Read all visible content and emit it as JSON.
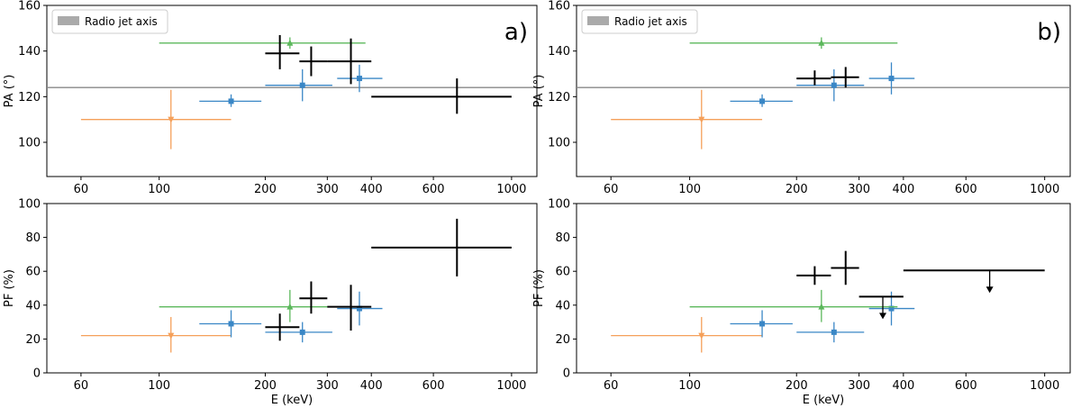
{
  "figure": {
    "ylabel_pa": "PA (°)",
    "ylabel_pf": "PF (%)",
    "xlabel": "E (keV)"
  },
  "legend": {
    "label": "Radio jet axis"
  },
  "colors": {
    "orange": "#f5a05a",
    "green": "#5cb85c",
    "blue": "#3a87c6",
    "black": "#000000",
    "axis": "#888888"
  },
  "chart_data": [
    {
      "id": "a-pa",
      "panel": "a)",
      "type": "scatter",
      "xscale": "log",
      "xlim": [
        48,
        1180
      ],
      "ylim": [
        85,
        160
      ],
      "xticks": [
        60,
        100,
        200,
        300,
        400,
        600,
        1000
      ],
      "yticks": [
        100,
        120,
        140,
        160
      ],
      "ylabel": "PA (°)",
      "hline": 124,
      "legend": "Radio jet axis",
      "series": [
        {
          "name": "orange",
          "color": "orange",
          "marker": "v",
          "points": [
            {
              "x": 108,
              "xl": 60,
              "xh": 160,
              "y": 110,
              "yl": 97,
              "yh": 123
            }
          ]
        },
        {
          "name": "blue",
          "color": "blue",
          "marker": "s",
          "points": [
            {
              "x": 160,
              "xl": 130,
              "xh": 195,
              "y": 118,
              "yl": 115.5,
              "yh": 121
            },
            {
              "x": 255,
              "xl": 200,
              "xh": 310,
              "y": 125,
              "yl": 118,
              "yh": 132
            },
            {
              "x": 370,
              "xl": 320,
              "xh": 430,
              "y": 128,
              "yl": 122,
              "yh": 134
            }
          ]
        },
        {
          "name": "green",
          "color": "green",
          "marker": "^",
          "points": [
            {
              "x": 235,
              "xl": 100,
              "xh": 385,
              "y": 143.5,
              "yl": 141,
              "yh": 146
            }
          ]
        },
        {
          "name": "black",
          "color": "black",
          "marker": "none",
          "points": [
            {
              "x": 220,
              "xl": 200,
              "xh": 250,
              "y": 139,
              "yl": 132,
              "yh": 147
            },
            {
              "x": 270,
              "xl": 250,
              "xh": 300,
              "y": 135.5,
              "yl": 129,
              "yh": 142
            },
            {
              "x": 350,
              "xl": 300,
              "xh": 400,
              "y": 135.5,
              "yl": 125.5,
              "yh": 145.5
            },
            {
              "x": 700,
              "xl": 400,
              "xh": 1000,
              "y": 120,
              "yl": 112.5,
              "yh": 128
            }
          ]
        }
      ]
    },
    {
      "id": "a-pf",
      "type": "scatter",
      "xscale": "log",
      "xlim": [
        48,
        1180
      ],
      "ylim": [
        0,
        100
      ],
      "xticks": [
        60,
        100,
        200,
        300,
        400,
        600,
        1000
      ],
      "yticks": [
        0,
        20,
        40,
        60,
        80,
        100
      ],
      "ylabel": "PF (%)",
      "xlabel": "E (keV)",
      "series": [
        {
          "name": "orange",
          "color": "orange",
          "marker": "v",
          "points": [
            {
              "x": 108,
              "xl": 60,
              "xh": 160,
              "y": 22,
              "yl": 12,
              "yh": 33
            }
          ]
        },
        {
          "name": "blue",
          "color": "blue",
          "marker": "s",
          "points": [
            {
              "x": 160,
              "xl": 130,
              "xh": 195,
              "y": 29,
              "yl": 21,
              "yh": 37
            },
            {
              "x": 255,
              "xl": 200,
              "xh": 310,
              "y": 24,
              "yl": 18,
              "yh": 30
            },
            {
              "x": 370,
              "xl": 320,
              "xh": 430,
              "y": 38,
              "yl": 28,
              "yh": 48
            }
          ]
        },
        {
          "name": "green",
          "color": "green",
          "marker": "^",
          "points": [
            {
              "x": 235,
              "xl": 100,
              "xh": 385,
              "y": 39,
              "yl": 30,
              "yh": 49
            }
          ]
        },
        {
          "name": "black",
          "color": "black",
          "marker": "none",
          "points": [
            {
              "x": 220,
              "xl": 200,
              "xh": 250,
              "y": 27,
              "yl": 19,
              "yh": 35
            },
            {
              "x": 270,
              "xl": 250,
              "xh": 300,
              "y": 44,
              "yl": 35,
              "yh": 54
            },
            {
              "x": 350,
              "xl": 300,
              "xh": 400,
              "y": 39,
              "yl": 25,
              "yh": 52
            },
            {
              "x": 700,
              "xl": 400,
              "xh": 1000,
              "y": 74,
              "yl": 57,
              "yh": 91
            }
          ]
        }
      ]
    },
    {
      "id": "b-pa",
      "panel": "b)",
      "type": "scatter",
      "xscale": "log",
      "xlim": [
        48,
        1180
      ],
      "ylim": [
        85,
        160
      ],
      "xticks": [
        60,
        100,
        200,
        300,
        400,
        600,
        1000
      ],
      "yticks": [
        100,
        120,
        140,
        160
      ],
      "ylabel": "PA (°)",
      "hline": 124,
      "legend": "Radio jet axis",
      "series": [
        {
          "name": "orange",
          "color": "orange",
          "marker": "v",
          "points": [
            {
              "x": 108,
              "xl": 60,
              "xh": 160,
              "y": 110,
              "yl": 97,
              "yh": 123
            }
          ]
        },
        {
          "name": "blue",
          "color": "blue",
          "marker": "s",
          "points": [
            {
              "x": 160,
              "xl": 130,
              "xh": 195,
              "y": 118,
              "yl": 115.5,
              "yh": 121
            },
            {
              "x": 255,
              "xl": 200,
              "xh": 310,
              "y": 125,
              "yl": 118,
              "yh": 132
            },
            {
              "x": 370,
              "xl": 320,
              "xh": 430,
              "y": 128,
              "yl": 121,
              "yh": 135
            }
          ]
        },
        {
          "name": "green",
          "color": "green",
          "marker": "^",
          "points": [
            {
              "x": 235,
              "xl": 100,
              "xh": 385,
              "y": 143.5,
              "yl": 141,
              "yh": 146
            }
          ]
        },
        {
          "name": "black",
          "color": "black",
          "marker": "none",
          "points": [
            {
              "x": 225,
              "xl": 200,
              "xh": 250,
              "y": 128,
              "yl": 125,
              "yh": 131.5
            },
            {
              "x": 275,
              "xl": 250,
              "xh": 300,
              "y": 128.5,
              "yl": 124,
              "yh": 133
            }
          ]
        }
      ]
    },
    {
      "id": "b-pf",
      "type": "scatter",
      "xscale": "log",
      "xlim": [
        48,
        1180
      ],
      "ylim": [
        0,
        100
      ],
      "xticks": [
        60,
        100,
        200,
        300,
        400,
        600,
        1000
      ],
      "yticks": [
        0,
        20,
        40,
        60,
        80,
        100
      ],
      "ylabel": "PF (%)",
      "xlabel": "E (keV)",
      "series": [
        {
          "name": "orange",
          "color": "orange",
          "marker": "v",
          "points": [
            {
              "x": 108,
              "xl": 60,
              "xh": 160,
              "y": 22,
              "yl": 12,
              "yh": 33
            }
          ]
        },
        {
          "name": "blue",
          "color": "blue",
          "marker": "s",
          "points": [
            {
              "x": 160,
              "xl": 130,
              "xh": 195,
              "y": 29,
              "yl": 21,
              "yh": 37
            },
            {
              "x": 255,
              "xl": 200,
              "xh": 310,
              "y": 24,
              "yl": 18,
              "yh": 30
            },
            {
              "x": 370,
              "xl": 320,
              "xh": 430,
              "y": 38,
              "yl": 28,
              "yh": 48
            }
          ]
        },
        {
          "name": "green",
          "color": "green",
          "marker": "^",
          "points": [
            {
              "x": 235,
              "xl": 100,
              "xh": 385,
              "y": 39,
              "yl": 30,
              "yh": 49
            }
          ]
        },
        {
          "name": "black",
          "color": "black",
          "marker": "none",
          "points": [
            {
              "x": 225,
              "xl": 200,
              "xh": 250,
              "y": 57.5,
              "yl": 52,
              "yh": 63
            },
            {
              "x": 275,
              "xl": 250,
              "xh": 300,
              "y": 62,
              "yl": 52,
              "yh": 72
            }
          ]
        },
        {
          "name": "upper-limits",
          "color": "black",
          "marker": "none",
          "upper_limits": [
            {
              "x": 350,
              "xl": 300,
              "xh": 400,
              "y": 45
            },
            {
              "x": 700,
              "xl": 400,
              "xh": 1000,
              "y": 60.5
            }
          ]
        }
      ]
    }
  ]
}
